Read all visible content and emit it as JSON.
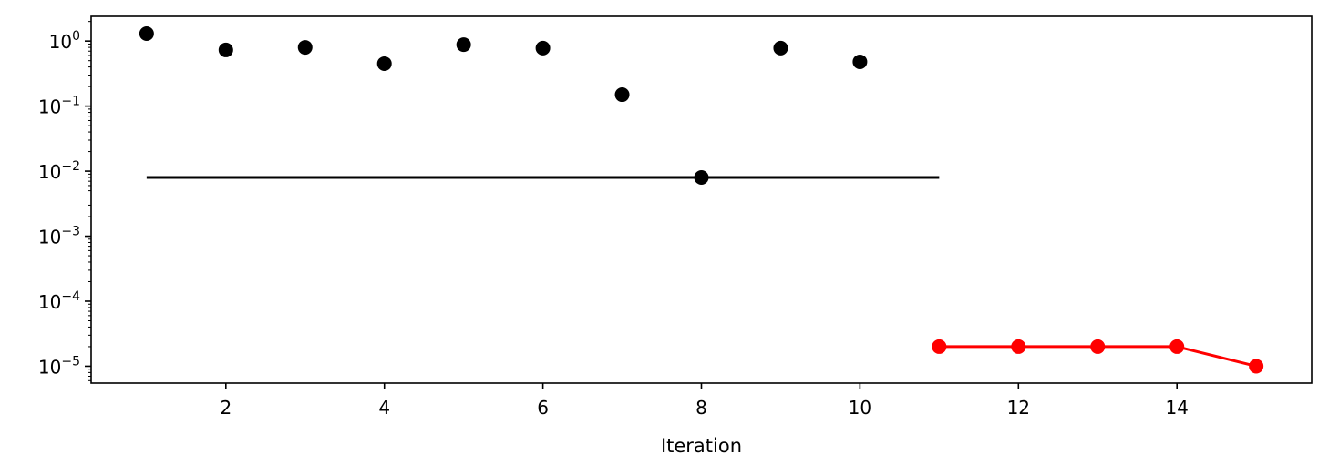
{
  "chart_data": {
    "type": "scatter",
    "xlabel": "Iteration",
    "ylabel": "",
    "y_scale": "log",
    "xlim": [
      0.3,
      15.7
    ],
    "ylim": [
      5.5e-06,
      2.4
    ],
    "x_ticks": [
      2,
      4,
      6,
      8,
      10,
      12,
      14
    ],
    "y_ticks": [
      {
        "value": 1e-05,
        "base": "10",
        "exp": "−5"
      },
      {
        "value": 0.0001,
        "base": "10",
        "exp": "−4"
      },
      {
        "value": 0.001,
        "base": "10",
        "exp": "−3"
      },
      {
        "value": 0.01,
        "base": "10",
        "exp": "−2"
      },
      {
        "value": 0.1,
        "base": "10",
        "exp": "−1"
      },
      {
        "value": 1,
        "base": "10",
        "exp": "0"
      }
    ],
    "grid": false,
    "series": [
      {
        "kind": "points",
        "color": "#000000",
        "x": [
          1,
          2,
          3,
          4,
          5,
          6,
          7,
          8,
          9,
          10
        ],
        "y": [
          1.3,
          0.73,
          0.8,
          0.45,
          0.88,
          0.78,
          0.15,
          0.008,
          0.78,
          0.48
        ]
      },
      {
        "kind": "hline",
        "color": "#000000",
        "y": 0.008,
        "x_range": [
          1,
          11
        ]
      },
      {
        "kind": "line-points",
        "color": "#ff0000",
        "x": [
          11,
          12,
          13,
          14,
          15
        ],
        "y": [
          2e-05,
          2e-05,
          2e-05,
          2e-05,
          1e-05
        ]
      }
    ]
  }
}
